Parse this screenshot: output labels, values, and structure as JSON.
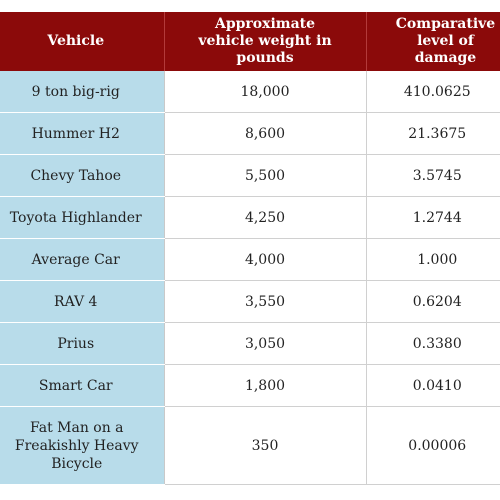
{
  "table": {
    "headers": {
      "vehicle": "Vehicle",
      "weight": "Approximate vehicle weight in pounds",
      "damage": "Comparative level of damage"
    },
    "rows": [
      {
        "vehicle": "9 ton big-rig",
        "weight": "18,000",
        "damage": "410.0625"
      },
      {
        "vehicle": "Hummer H2",
        "weight": "8,600",
        "damage": "21.3675"
      },
      {
        "vehicle": "Chevy Tahoe",
        "weight": "5,500",
        "damage": "3.5745"
      },
      {
        "vehicle": "Toyota Highlander",
        "weight": "4,250",
        "damage": "1.2744"
      },
      {
        "vehicle": "Average Car",
        "weight": "4,000",
        "damage": "1.000"
      },
      {
        "vehicle": "RAV 4",
        "weight": "3,550",
        "damage": "0.6204"
      },
      {
        "vehicle": "Prius",
        "weight": "3,050",
        "damage": "0.3380"
      },
      {
        "vehicle": "Smart Car",
        "weight": "1,800",
        "damage": "0.0410"
      },
      {
        "vehicle": "Fat Man on a Freakishly Heavy Bicycle",
        "weight": "350",
        "damage": "0.00006"
      }
    ]
  },
  "colors": {
    "header_background": "#8b0a0a",
    "header_text": "#ffffff",
    "vehicle_column_background": "#b8dcea",
    "body_background": "#ffffff"
  }
}
